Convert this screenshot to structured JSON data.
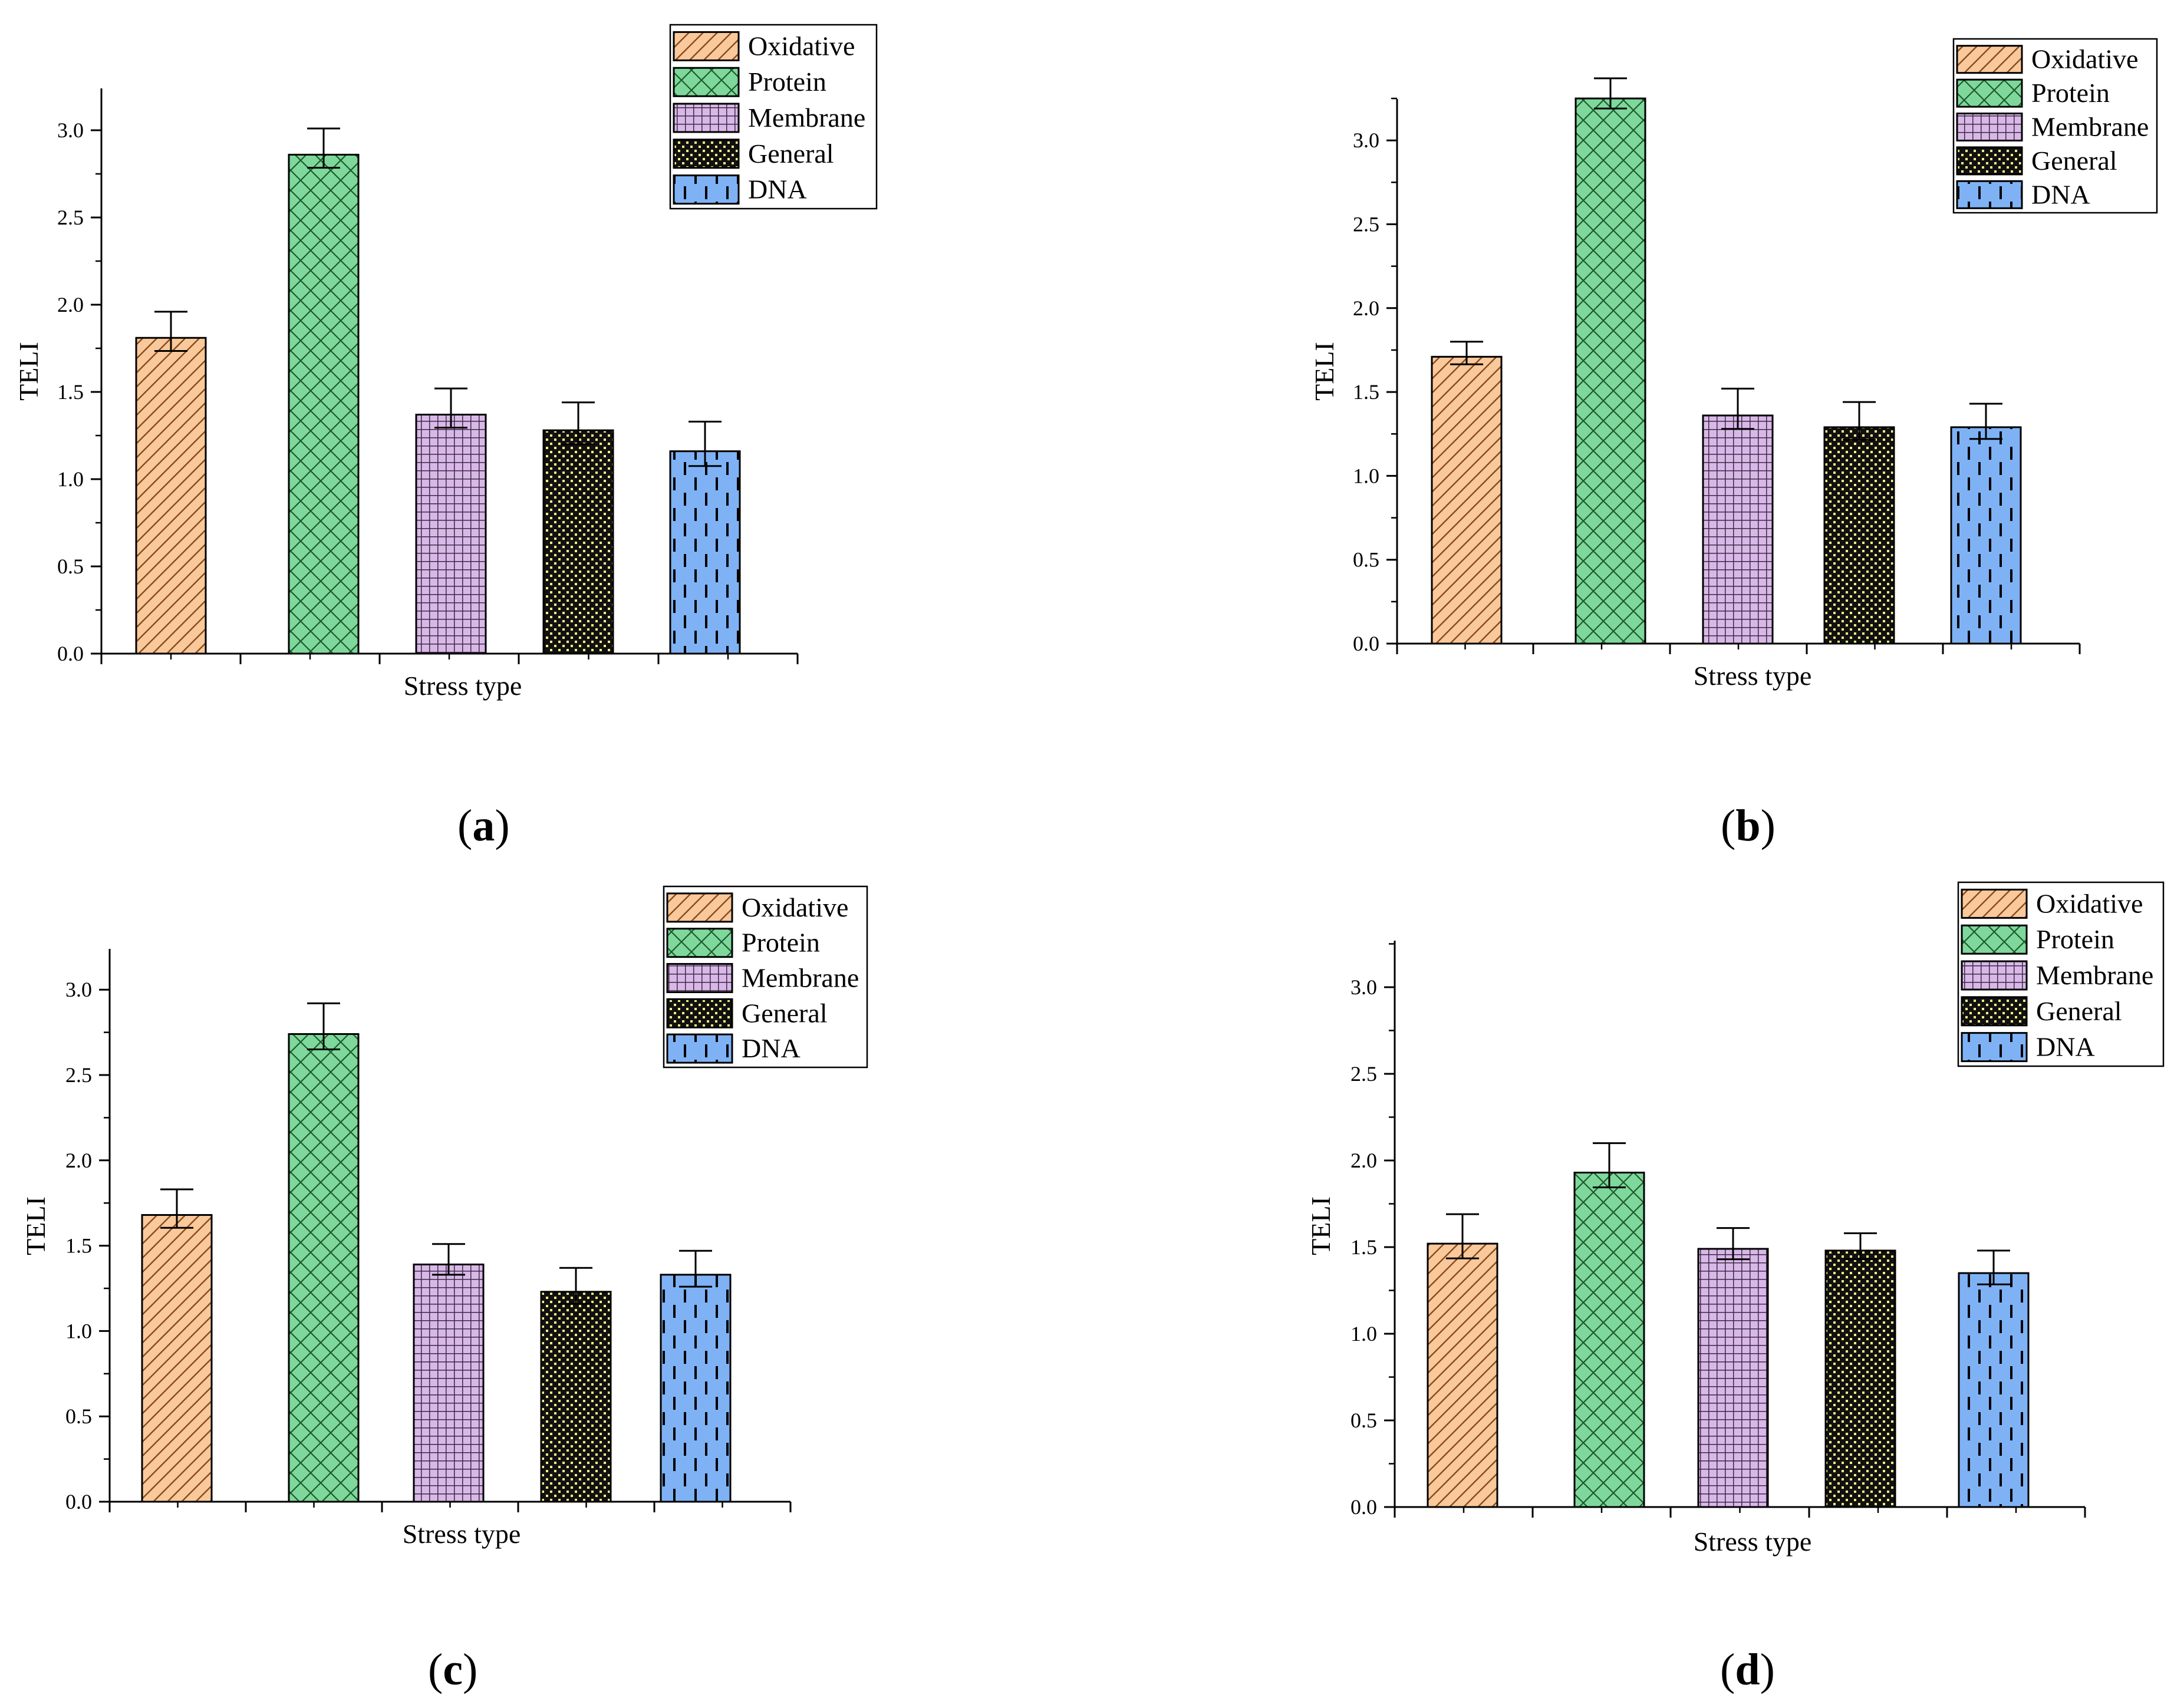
{
  "figure": {
    "panel_labels": [
      "(a)",
      "(b)",
      "(c)",
      "(d)"
    ]
  },
  "colors": {
    "Oxidative": "#f9c99b",
    "Protein": "#7fd89b",
    "Membrane": "#d9b8e8",
    "General": "#f3ef85",
    "DNA": "#7fb2f5"
  },
  "chart_data": [
    {
      "type": "bar",
      "panel": "a",
      "title": "",
      "xlabel": "Stress type",
      "ylabel": "TELI",
      "ylim": [
        0,
        3.2
      ],
      "yticks": [
        "0.0",
        "0.5",
        "1.0",
        "1.5",
        "2.0",
        "2.5",
        "3.0"
      ],
      "categories": [
        "Oxidative",
        "Protein",
        "Membrane",
        "General",
        "DNA"
      ],
      "values": [
        1.81,
        2.86,
        1.37,
        1.28,
        1.16
      ],
      "errors": [
        0.15,
        0.15,
        0.15,
        0.16,
        0.17
      ],
      "legend": [
        "Oxidative",
        "Protein",
        "Membrane",
        "General",
        "DNA"
      ],
      "legend_position": "top-right"
    },
    {
      "type": "bar",
      "panel": "b",
      "title": "",
      "xlabel": "Stress type",
      "ylabel": "TELI",
      "ylim": [
        0,
        3.25
      ],
      "yticks": [
        "0.0",
        "0.5",
        "1.0",
        "1.5",
        "2.0",
        "2.5",
        "3.0"
      ],
      "categories": [
        "Oxidative",
        "Protein",
        "Membrane",
        "General",
        "DNA"
      ],
      "values": [
        1.71,
        3.25,
        1.36,
        1.29,
        1.29
      ],
      "errors": [
        0.09,
        0.12,
        0.16,
        0.15,
        0.14
      ],
      "legend": [
        "Oxidative",
        "Protein",
        "Membrane",
        "General",
        "DNA"
      ],
      "legend_position": "top-right"
    },
    {
      "type": "bar",
      "panel": "c",
      "title": "",
      "xlabel": "Stress type",
      "ylabel": "TELI",
      "ylim": [
        0,
        3.2
      ],
      "yticks": [
        "0.0",
        "0.5",
        "1.0",
        "1.5",
        "2.0",
        "2.5",
        "3.0"
      ],
      "categories": [
        "Oxidative",
        "Protein",
        "Membrane",
        "General",
        "DNA"
      ],
      "values": [
        1.68,
        2.74,
        1.39,
        1.23,
        1.33
      ],
      "errors": [
        0.15,
        0.18,
        0.12,
        0.14,
        0.14
      ],
      "legend": [
        "Oxidative",
        "Protein",
        "Membrane",
        "General",
        "DNA"
      ],
      "legend_position": "top-right"
    },
    {
      "type": "bar",
      "panel": "d",
      "title": "",
      "xlabel": "Stress type",
      "ylabel": "TELI",
      "ylim": [
        0,
        3.25
      ],
      "yticks": [
        "0.0",
        "0.5",
        "1.0",
        "1.5",
        "2.0",
        "2.5",
        "3.0"
      ],
      "categories": [
        "Oxidative",
        "Protein",
        "Membrane",
        "General",
        "DNA"
      ],
      "values": [
        1.52,
        1.93,
        1.49,
        1.48,
        1.35
      ],
      "errors": [
        0.17,
        0.17,
        0.12,
        0.1,
        0.13
      ],
      "legend": [
        "Oxidative",
        "Protein",
        "Membrane",
        "General",
        "DNA"
      ],
      "legend_position": "top-right"
    }
  ]
}
